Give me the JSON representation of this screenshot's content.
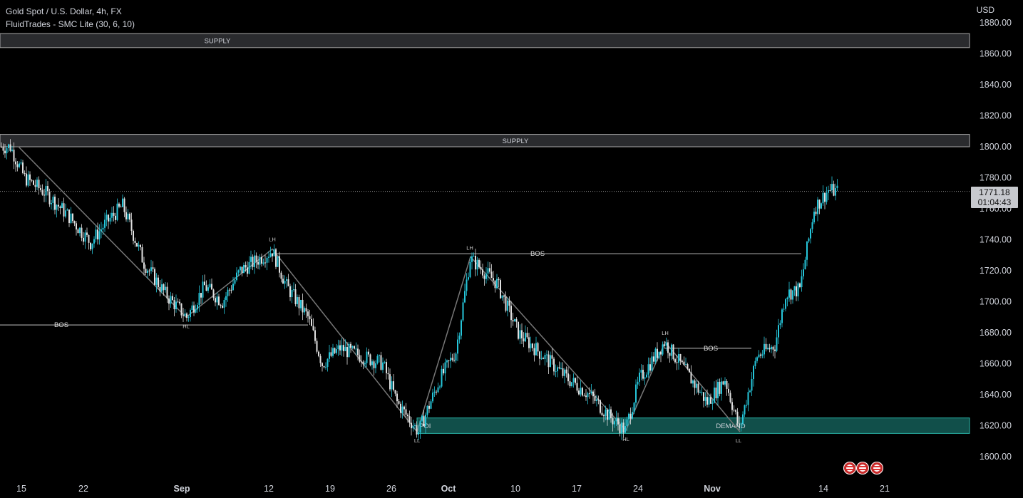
{
  "header": {
    "symbol": "Gold Spot / U.S. Dollar, 4h, FX",
    "indicator": "FluidTrades - SMC Lite  (30, 6, 10)"
  },
  "price_axis": {
    "currency": "USD",
    "ticks": [
      "1880.00",
      "1860.00",
      "1840.00",
      "1820.00",
      "1800.00",
      "1780.00",
      "1760.00",
      "1740.00",
      "1720.00",
      "1700.00",
      "1680.00",
      "1660.00",
      "1640.00",
      "1620.00",
      "1600.00"
    ]
  },
  "time_axis": {
    "ticks": [
      "15",
      "22",
      "Sep",
      "12",
      "19",
      "26",
      "Oct",
      "10",
      "17",
      "24",
      "Nov",
      "14",
      "21"
    ],
    "bold": [
      "Sep",
      "Oct",
      "Nov"
    ]
  },
  "current_price": {
    "price": "1771.18",
    "countdown": "01:04:43"
  },
  "colors": {
    "up": "#26c6da",
    "down": "#e0e0e0",
    "supply": "#5d5f66",
    "demand": "#1f8f87",
    "structure": "#9e9e9e"
  },
  "chart_data": {
    "type": "candlestick",
    "ylim": [
      1590,
      1885
    ],
    "zones": [
      {
        "label": "SUPPLY",
        "top": 1873,
        "bottom": 1864
      },
      {
        "label": "SUPPLY",
        "top": 1808,
        "bottom": 1800
      },
      {
        "label": "POI",
        "top": 1625,
        "bottom": 1615
      },
      {
        "label": "DEMAND",
        "top": 1625,
        "bottom": 1615
      }
    ],
    "bos_lines": [
      {
        "label": "BOS",
        "price": 1685
      },
      {
        "label": "BOS",
        "price": 1731
      },
      {
        "label": "BOS",
        "price": 1670
      }
    ],
    "swing_labels": [
      {
        "label": "HL",
        "price": 1690
      },
      {
        "label": "LH",
        "price": 1734
      },
      {
        "label": "LL",
        "price": 1616
      },
      {
        "label": "LH",
        "price": 1729
      },
      {
        "label": "HL",
        "price": 1617
      },
      {
        "label": "LH",
        "price": 1674
      },
      {
        "label": "LL",
        "price": 1616
      }
    ],
    "price_path": [
      {
        "bar": 0,
        "close": 1800
      },
      {
        "bar": 5,
        "close": 1800
      },
      {
        "bar": 13,
        "close": 1780
      },
      {
        "bar": 25,
        "close": 1770
      },
      {
        "bar": 38,
        "close": 1755
      },
      {
        "bar": 50,
        "close": 1738
      },
      {
        "bar": 58,
        "close": 1750
      },
      {
        "bar": 68,
        "close": 1762
      },
      {
        "bar": 80,
        "close": 1725
      },
      {
        "bar": 92,
        "close": 1705
      },
      {
        "bar": 104,
        "close": 1690
      },
      {
        "bar": 114,
        "close": 1710
      },
      {
        "bar": 124,
        "close": 1700
      },
      {
        "bar": 134,
        "close": 1720
      },
      {
        "bar": 152,
        "close": 1733
      },
      {
        "bar": 160,
        "close": 1710
      },
      {
        "bar": 172,
        "close": 1690
      },
      {
        "bar": 180,
        "close": 1660
      },
      {
        "bar": 190,
        "close": 1670
      },
      {
        "bar": 202,
        "close": 1665
      },
      {
        "bar": 214,
        "close": 1660
      },
      {
        "bar": 222,
        "close": 1635
      },
      {
        "bar": 234,
        "close": 1616
      },
      {
        "bar": 246,
        "close": 1650
      },
      {
        "bar": 255,
        "close": 1668
      },
      {
        "bar": 263,
        "close": 1728
      },
      {
        "bar": 278,
        "close": 1712
      },
      {
        "bar": 290,
        "close": 1680
      },
      {
        "bar": 304,
        "close": 1665
      },
      {
        "bar": 318,
        "close": 1650
      },
      {
        "bar": 330,
        "close": 1640
      },
      {
        "bar": 342,
        "close": 1625
      },
      {
        "bar": 350,
        "close": 1617
      },
      {
        "bar": 358,
        "close": 1650
      },
      {
        "bar": 372,
        "close": 1674
      },
      {
        "bar": 384,
        "close": 1655
      },
      {
        "bar": 396,
        "close": 1635
      },
      {
        "bar": 406,
        "close": 1650
      },
      {
        "bar": 414,
        "close": 1618
      },
      {
        "bar": 424,
        "close": 1665
      },
      {
        "bar": 434,
        "close": 1672
      },
      {
        "bar": 440,
        "close": 1705
      },
      {
        "bar": 448,
        "close": 1708
      },
      {
        "bar": 456,
        "close": 1760
      },
      {
        "bar": 464,
        "close": 1772
      },
      {
        "bar": 470,
        "close": 1771
      }
    ]
  }
}
